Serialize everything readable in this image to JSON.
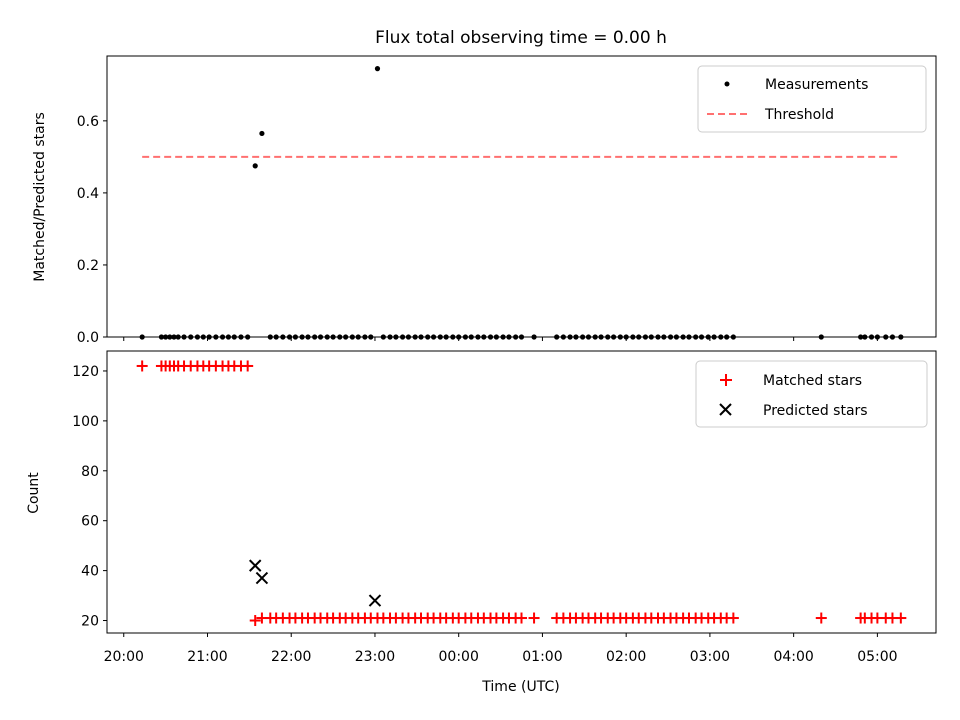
{
  "chart_data": [
    {
      "type": "scatter",
      "title": "Flux total observing time = 0.00 h",
      "ylabel": "Matched/Predicted stars",
      "xlabel": "",
      "ylim": [
        0,
        0.78
      ],
      "yticks": [
        "0.0",
        "0.2",
        "0.4",
        "0.6"
      ],
      "xrange_hours": [
        19.8,
        29.7
      ],
      "xtick_hours": [
        20,
        21,
        22,
        23,
        24,
        25,
        26,
        27,
        28,
        29
      ],
      "legend": {
        "placement": "top-right",
        "entries": [
          "Measurements",
          "Threshold"
        ]
      },
      "threshold": {
        "y": 0.5,
        "x": [
          20.22,
          29.28
        ]
      },
      "series": [
        {
          "name": "Measurements",
          "color": "#000000",
          "marker": "dot",
          "x": [
            20.22,
            20.45,
            20.5,
            20.55,
            20.6,
            20.65,
            20.72,
            20.8,
            20.88,
            20.95,
            21.02,
            21.1,
            21.18,
            21.25,
            21.32,
            21.4,
            21.48,
            21.57,
            21.65,
            21.75,
            21.82,
            21.9,
            21.98,
            22.05,
            22.13,
            22.2,
            22.28,
            22.35,
            22.43,
            22.5,
            22.58,
            22.65,
            22.73,
            22.8,
            22.88,
            22.95,
            23.03,
            23.1,
            23.18,
            23.25,
            23.33,
            23.4,
            23.48,
            23.55,
            23.63,
            23.7,
            23.78,
            23.85,
            23.93,
            24.0,
            24.08,
            24.15,
            24.23,
            24.3,
            24.38,
            24.45,
            24.53,
            24.6,
            24.68,
            24.75,
            24.9,
            25.17,
            25.25,
            25.33,
            25.4,
            25.48,
            25.55,
            25.63,
            25.7,
            25.78,
            25.85,
            25.93,
            26.0,
            26.08,
            26.15,
            26.23,
            26.3,
            26.38,
            26.45,
            26.53,
            26.6,
            26.68,
            26.75,
            26.83,
            26.9,
            26.98,
            27.05,
            27.13,
            27.2,
            27.28,
            28.33,
            28.8,
            28.85,
            28.93,
            29.0,
            29.1,
            29.18,
            29.28
          ],
          "y": [
            0,
            0,
            0,
            0,
            0,
            0,
            0,
            0,
            0,
            0,
            0,
            0,
            0,
            0,
            0,
            0,
            0,
            0.475,
            0.565,
            0,
            0,
            0,
            0,
            0,
            0,
            0,
            0,
            0,
            0,
            0,
            0,
            0,
            0,
            0,
            0,
            0,
            0.745,
            0,
            0,
            0,
            0,
            0,
            0,
            0,
            0,
            0,
            0,
            0,
            0,
            0,
            0,
            0,
            0,
            0,
            0,
            0,
            0,
            0,
            0,
            0,
            0,
            0,
            0,
            0,
            0,
            0,
            0,
            0,
            0,
            0,
            0,
            0,
            0,
            0,
            0,
            0,
            0,
            0,
            0,
            0,
            0,
            0,
            0,
            0,
            0,
            0,
            0,
            0,
            0,
            0,
            0,
            0,
            0,
            0,
            0,
            0,
            0,
            0
          ]
        },
        {
          "name": "Threshold",
          "color": "#ff7070",
          "marker": "dashed-line"
        }
      ]
    },
    {
      "type": "scatter",
      "title": "",
      "ylabel": "Count",
      "xlabel": "Time (UTC)",
      "ylim": [
        15,
        128
      ],
      "yticks": [
        "20",
        "40",
        "60",
        "80",
        "100",
        "120"
      ],
      "xrange_hours": [
        19.8,
        29.7
      ],
      "xtick_hours": [
        20,
        21,
        22,
        23,
        24,
        25,
        26,
        27,
        28,
        29
      ],
      "xtick_labels": [
        "20:00",
        "21:00",
        "22:00",
        "23:00",
        "00:00",
        "01:00",
        "02:00",
        "03:00",
        "04:00",
        "05:00"
      ],
      "legend": {
        "placement": "top-right",
        "entries": [
          "Matched stars",
          "Predicted stars"
        ]
      },
      "series": [
        {
          "name": "Matched stars",
          "color": "#ff0000",
          "marker": "plus",
          "x": [
            20.22,
            20.45,
            20.5,
            20.55,
            20.6,
            20.65,
            20.72,
            20.8,
            20.88,
            20.95,
            21.02,
            21.1,
            21.18,
            21.25,
            21.32,
            21.4,
            21.48,
            21.57,
            21.65,
            21.75,
            21.82,
            21.9,
            21.98,
            22.05,
            22.13,
            22.2,
            22.28,
            22.35,
            22.43,
            22.5,
            22.58,
            22.65,
            22.73,
            22.8,
            22.88,
            22.95,
            23.03,
            23.1,
            23.18,
            23.25,
            23.33,
            23.4,
            23.48,
            23.55,
            23.63,
            23.7,
            23.78,
            23.85,
            23.93,
            24.0,
            24.08,
            24.15,
            24.23,
            24.3,
            24.38,
            24.45,
            24.53,
            24.6,
            24.68,
            24.75,
            24.9,
            25.17,
            25.25,
            25.33,
            25.4,
            25.48,
            25.55,
            25.63,
            25.7,
            25.78,
            25.85,
            25.93,
            26.0,
            26.08,
            26.15,
            26.23,
            26.3,
            26.38,
            26.45,
            26.53,
            26.6,
            26.68,
            26.75,
            26.83,
            26.9,
            26.98,
            27.05,
            27.13,
            27.2,
            27.28,
            28.33,
            28.8,
            28.85,
            28.93,
            29.0,
            29.1,
            29.18,
            29.28
          ],
          "y": [
            122,
            122,
            122,
            122,
            122,
            122,
            122,
            122,
            122,
            122,
            122,
            122,
            122,
            122,
            122,
            122,
            122,
            20,
            21,
            21,
            21,
            21,
            21,
            21,
            21,
            21,
            21,
            21,
            21,
            21,
            21,
            21,
            21,
            21,
            21,
            21,
            21,
            21,
            21,
            21,
            21,
            21,
            21,
            21,
            21,
            21,
            21,
            21,
            21,
            21,
            21,
            21,
            21,
            21,
            21,
            21,
            21,
            21,
            21,
            21,
            21,
            21,
            21,
            21,
            21,
            21,
            21,
            21,
            21,
            21,
            21,
            21,
            21,
            21,
            21,
            21,
            21,
            21,
            21,
            21,
            21,
            21,
            21,
            21,
            21,
            21,
            21,
            21,
            21,
            21,
            21,
            21,
            21,
            21,
            21,
            21,
            21,
            21
          ]
        },
        {
          "name": "Predicted stars",
          "color": "#000000",
          "marker": "x",
          "x": [
            21.57,
            21.65,
            23.0
          ],
          "y": [
            42,
            37,
            28
          ]
        }
      ]
    }
  ]
}
